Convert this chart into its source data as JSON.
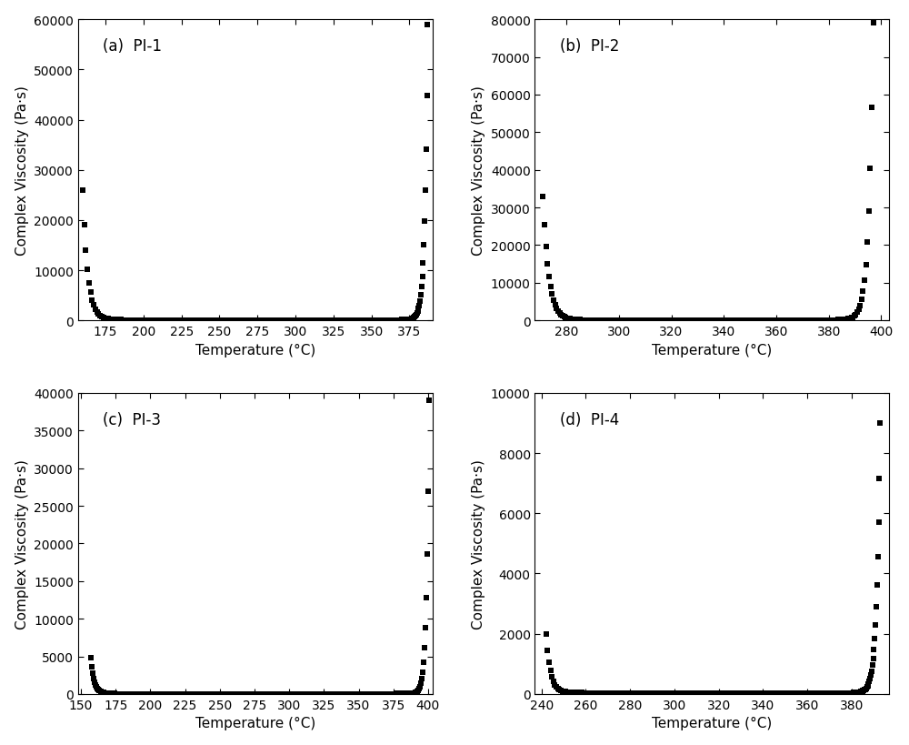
{
  "subplots": [
    {
      "label": "(a)",
      "title": "PI-1",
      "xlim": [
        157,
        390
      ],
      "ylim": [
        0,
        60000
      ],
      "xticks": [
        175,
        200,
        225,
        250,
        275,
        300,
        325,
        350,
        375
      ],
      "yticks": [
        0,
        10000,
        20000,
        30000,
        40000,
        50000,
        60000
      ],
      "x_start": 160,
      "x_fall_end": 185,
      "x_rise_start": 370,
      "x_end": 387,
      "y_initial": 26000,
      "y_min": 150,
      "y_final": 59000,
      "rise_steepness": 0.55,
      "fall_steepness": 0.3
    },
    {
      "label": "(b)",
      "title": "PI-2",
      "xlim": [
        268,
        403
      ],
      "ylim": [
        0,
        80000
      ],
      "xticks": [
        280,
        300,
        320,
        340,
        360,
        380,
        400
      ],
      "yticks": [
        0,
        10000,
        20000,
        30000,
        40000,
        50000,
        60000,
        70000,
        80000
      ],
      "x_start": 271,
      "x_fall_end": 285,
      "x_rise_start": 378,
      "x_end": 397,
      "y_initial": 33000,
      "y_min": 150,
      "y_final": 79000,
      "rise_steepness": 0.6,
      "fall_steepness": 0.45
    },
    {
      "label": "(c)",
      "title": "PI-3",
      "xlim": [
        148,
        403
      ],
      "ylim": [
        0,
        40000
      ],
      "xticks": [
        150,
        175,
        200,
        225,
        250,
        275,
        300,
        325,
        350,
        375,
        400
      ],
      "yticks": [
        0,
        5000,
        10000,
        15000,
        20000,
        25000,
        30000,
        35000,
        40000
      ],
      "x_start": 157,
      "x_fall_end": 174,
      "x_rise_start": 378,
      "x_end": 401,
      "y_initial": 4800,
      "y_min": 50,
      "y_final": 39000,
      "rise_steepness": 0.55,
      "fall_steepness": 0.4
    },
    {
      "label": "(d)",
      "title": "PI-4",
      "xlim": [
        237,
        397
      ],
      "ylim": [
        0,
        10000
      ],
      "xticks": [
        240,
        260,
        280,
        300,
        320,
        340,
        360,
        380
      ],
      "yticks": [
        0,
        2000,
        4000,
        6000,
        8000,
        10000
      ],
      "x_start": 242,
      "x_fall_end": 258,
      "x_rise_start": 381,
      "x_end": 393,
      "y_initial": 2000,
      "y_min": 50,
      "y_final": 9000,
      "rise_steepness": 0.65,
      "fall_steepness": 0.5
    }
  ],
  "ylabel": "Complex Viscosity (Pa·s)",
  "xlabel": "Temperature (°C)",
  "marker": "s",
  "markersize": 5,
  "color": "black",
  "label_fontsize": 11,
  "tick_fontsize": 10,
  "title_fontsize": 12
}
